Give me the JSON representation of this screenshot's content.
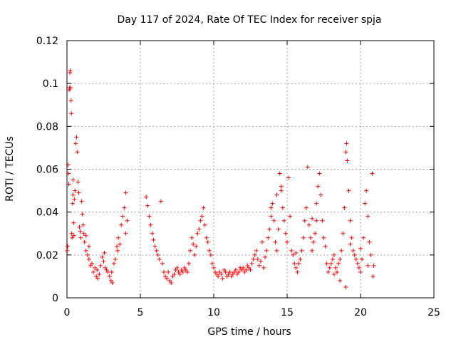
{
  "chart_data": {
    "type": "scatter",
    "title": "Day 117 of 2024, Rate Of TEC Index for receiver spja",
    "xlabel": "GPS time / hours",
    "ylabel": "ROTI / TECUs",
    "xlim": [
      0,
      25
    ],
    "ylim": [
      0,
      0.12
    ],
    "xticks": [
      0,
      5,
      10,
      15,
      20,
      25
    ],
    "xtick_labels": [
      "0",
      "5",
      "10",
      "15",
      "20",
      "25"
    ],
    "yticks": [
      0,
      0.02,
      0.04,
      0.06,
      0.08,
      0.1,
      0.12
    ],
    "ytick_labels": [
      "0",
      "0.02",
      "0.04",
      "0.06",
      "0.08",
      "0.1",
      "0.12"
    ],
    "grid": true,
    "marker": "+",
    "color": "#ff0000",
    "series": [
      {
        "name": "ROTI",
        "points": [
          [
            0.02,
            0.022
          ],
          [
            0.05,
            0.024
          ],
          [
            0.08,
            0.062
          ],
          [
            0.1,
            0.058
          ],
          [
            0.12,
            0.053
          ],
          [
            0.15,
            0.097
          ],
          [
            0.18,
            0.098
          ],
          [
            0.2,
            0.105
          ],
          [
            0.22,
            0.106
          ],
          [
            0.25,
            0.098
          ],
          [
            0.28,
            0.092
          ],
          [
            0.3,
            0.086
          ],
          [
            0.32,
            0.03
          ],
          [
            0.35,
            0.028
          ],
          [
            0.38,
            0.044
          ],
          [
            0.4,
            0.048
          ],
          [
            0.42,
            0.055
          ],
          [
            0.45,
            0.035
          ],
          [
            0.48,
            0.029
          ],
          [
            0.5,
            0.046
          ],
          [
            0.55,
            0.05
          ],
          [
            0.6,
            0.072
          ],
          [
            0.65,
            0.075
          ],
          [
            0.7,
            0.068
          ],
          [
            0.75,
            0.054
          ],
          [
            0.8,
            0.049
          ],
          [
            0.85,
            0.033
          ],
          [
            0.9,
            0.031
          ],
          [
            0.95,
            0.028
          ],
          [
            1.0,
            0.045
          ],
          [
            1.05,
            0.039
          ],
          [
            1.1,
            0.034
          ],
          [
            1.15,
            0.03
          ],
          [
            1.2,
            0.026
          ],
          [
            1.3,
            0.022
          ],
          [
            1.4,
            0.02
          ],
          [
            1.5,
            0.018
          ],
          [
            1.6,
            0.015
          ],
          [
            1.7,
            0.016
          ],
          [
            1.8,
            0.012
          ],
          [
            1.9,
            0.014
          ],
          [
            2.0,
            0.01
          ],
          [
            2.1,
            0.009
          ],
          [
            2.2,
            0.011
          ],
          [
            2.3,
            0.015
          ],
          [
            2.4,
            0.019
          ],
          [
            2.5,
            0.017
          ],
          [
            2.6,
            0.014
          ],
          [
            2.7,
            0.013
          ],
          [
            2.8,
            0.012
          ],
          [
            2.9,
            0.01
          ],
          [
            3.0,
            0.008
          ],
          [
            3.1,
            0.007
          ],
          [
            3.2,
            0.016
          ],
          [
            3.3,
            0.018
          ],
          [
            3.4,
            0.024
          ],
          [
            3.5,
            0.028
          ],
          [
            3.6,
            0.025
          ],
          [
            3.7,
            0.034
          ],
          [
            3.8,
            0.038
          ],
          [
            3.9,
            0.042
          ],
          [
            4.0,
            0.049
          ],
          [
            4.1,
            0.036
          ],
          [
            4.0,
            0.03
          ],
          [
            1.3,
            0.029
          ],
          [
            1.5,
            0.024
          ],
          [
            2.05,
            0.013
          ],
          [
            2.55,
            0.021
          ],
          [
            3.05,
            0.012
          ],
          [
            3.45,
            0.022
          ],
          [
            5.4,
            0.047
          ],
          [
            5.5,
            0.043
          ],
          [
            5.6,
            0.038
          ],
          [
            5.7,
            0.034
          ],
          [
            5.8,
            0.03
          ],
          [
            5.9,
            0.027
          ],
          [
            6.0,
            0.024
          ],
          [
            6.1,
            0.022
          ],
          [
            6.2,
            0.02
          ],
          [
            6.3,
            0.018
          ],
          [
            6.4,
            0.045
          ],
          [
            6.5,
            0.016
          ],
          [
            6.6,
            0.012
          ],
          [
            6.7,
            0.01
          ],
          [
            6.8,
            0.009
          ],
          [
            6.9,
            0.012
          ],
          [
            7.0,
            0.008
          ],
          [
            7.1,
            0.007
          ],
          [
            7.2,
            0.01
          ],
          [
            7.3,
            0.011
          ],
          [
            7.4,
            0.013
          ],
          [
            7.5,
            0.014
          ],
          [
            7.6,
            0.012
          ],
          [
            7.7,
            0.011
          ],
          [
            7.8,
            0.013
          ],
          [
            7.9,
            0.012
          ],
          [
            8.0,
            0.014
          ],
          [
            8.1,
            0.013
          ],
          [
            8.2,
            0.012
          ],
          [
            8.3,
            0.016
          ],
          [
            8.4,
            0.022
          ],
          [
            8.5,
            0.028
          ],
          [
            8.6,
            0.025
          ],
          [
            8.7,
            0.02
          ],
          [
            8.8,
            0.024
          ],
          [
            8.9,
            0.03
          ],
          [
            9.0,
            0.032
          ],
          [
            9.1,
            0.036
          ],
          [
            9.2,
            0.038
          ],
          [
            9.3,
            0.042
          ],
          [
            9.4,
            0.034
          ],
          [
            9.5,
            0.028
          ],
          [
            9.6,
            0.026
          ],
          [
            9.7,
            0.022
          ],
          [
            9.8,
            0.02
          ],
          [
            9.9,
            0.016
          ],
          [
            10.0,
            0.014
          ],
          [
            10.1,
            0.012
          ],
          [
            10.2,
            0.011
          ],
          [
            10.3,
            0.01
          ],
          [
            10.4,
            0.012
          ],
          [
            10.5,
            0.011
          ],
          [
            10.6,
            0.009
          ],
          [
            10.7,
            0.013
          ],
          [
            10.8,
            0.012
          ],
          [
            10.9,
            0.01
          ],
          [
            11.0,
            0.011
          ],
          [
            11.1,
            0.012
          ],
          [
            11.2,
            0.01
          ],
          [
            11.3,
            0.011
          ],
          [
            11.4,
            0.012
          ],
          [
            11.5,
            0.013
          ],
          [
            11.6,
            0.011
          ],
          [
            11.7,
            0.012
          ],
          [
            11.8,
            0.014
          ],
          [
            11.9,
            0.013
          ],
          [
            12.0,
            0.014
          ],
          [
            12.1,
            0.012
          ],
          [
            12.2,
            0.013
          ],
          [
            12.3,
            0.015
          ],
          [
            12.4,
            0.014
          ],
          [
            12.5,
            0.013
          ],
          [
            12.6,
            0.016
          ],
          [
            12.7,
            0.018
          ],
          [
            12.8,
            0.02
          ],
          [
            12.9,
            0.022
          ],
          [
            13.0,
            0.018
          ],
          [
            13.1,
            0.015
          ],
          [
            13.2,
            0.017
          ],
          [
            13.3,
            0.026
          ],
          [
            13.4,
            0.014
          ],
          [
            13.5,
            0.019
          ],
          [
            13.6,
            0.022
          ],
          [
            13.7,
            0.028
          ],
          [
            13.8,
            0.032
          ],
          [
            13.9,
            0.038
          ],
          [
            14.0,
            0.044
          ],
          [
            14.1,
            0.036
          ],
          [
            14.2,
            0.026
          ],
          [
            14.3,
            0.022
          ],
          [
            14.4,
            0.032
          ],
          [
            14.5,
            0.058
          ],
          [
            14.6,
            0.052
          ],
          [
            14.7,
            0.042
          ],
          [
            14.8,
            0.036
          ],
          [
            14.9,
            0.03
          ],
          [
            15.0,
            0.026
          ],
          [
            15.1,
            0.056
          ],
          [
            15.2,
            0.038
          ],
          [
            15.3,
            0.022
          ],
          [
            15.4,
            0.02
          ],
          [
            15.5,
            0.016
          ],
          [
            15.6,
            0.014
          ],
          [
            15.7,
            0.012
          ],
          [
            15.8,
            0.016
          ],
          [
            15.9,
            0.018
          ],
          [
            16.0,
            0.022
          ],
          [
            16.1,
            0.028
          ],
          [
            16.2,
            0.036
          ],
          [
            16.3,
            0.042
          ],
          [
            16.4,
            0.061
          ],
          [
            16.5,
            0.034
          ],
          [
            16.6,
            0.028
          ],
          [
            16.7,
            0.022
          ],
          [
            16.8,
            0.026
          ],
          [
            16.9,
            0.03
          ],
          [
            17.0,
            0.036
          ],
          [
            17.1,
            0.052
          ],
          [
            17.2,
            0.058
          ],
          [
            17.3,
            0.048
          ],
          [
            17.4,
            0.036
          ],
          [
            17.5,
            0.028
          ],
          [
            17.6,
            0.024
          ],
          [
            17.7,
            0.016
          ],
          [
            17.8,
            0.012
          ],
          [
            17.9,
            0.014
          ],
          [
            18.0,
            0.016
          ],
          [
            18.1,
            0.018
          ],
          [
            18.2,
            0.02
          ],
          [
            18.3,
            0.014
          ],
          [
            18.4,
            0.012
          ],
          [
            18.5,
            0.016
          ],
          [
            18.6,
            0.018
          ],
          [
            18.7,
            0.022
          ],
          [
            18.8,
            0.03
          ],
          [
            18.9,
            0.042
          ],
          [
            19.0,
            0.068
          ],
          [
            19.05,
            0.072
          ],
          [
            19.1,
            0.064
          ],
          [
            19.2,
            0.05
          ],
          [
            19.3,
            0.036
          ],
          [
            19.4,
            0.028
          ],
          [
            19.5,
            0.022
          ],
          [
            19.6,
            0.02
          ],
          [
            19.7,
            0.018
          ],
          [
            19.8,
            0.016
          ],
          [
            19.9,
            0.014
          ],
          [
            20.0,
            0.012
          ],
          [
            20.1,
            0.018
          ],
          [
            20.2,
            0.028
          ],
          [
            20.3,
            0.044
          ],
          [
            20.4,
            0.05
          ],
          [
            20.5,
            0.038
          ],
          [
            20.6,
            0.026
          ],
          [
            20.7,
            0.02
          ],
          [
            20.8,
            0.058
          ],
          [
            20.85,
            0.01
          ],
          [
            20.9,
            0.015
          ],
          [
            19.0,
            0.005
          ],
          [
            18.6,
            0.008
          ],
          [
            14.3,
            0.048
          ],
          [
            14.6,
            0.05
          ],
          [
            13.9,
            0.042
          ],
          [
            15.6,
            0.021
          ],
          [
            16.7,
            0.037
          ],
          [
            17.0,
            0.044
          ],
          [
            18.2,
            0.011
          ],
          [
            19.3,
            0.025
          ],
          [
            20.0,
            0.023
          ],
          [
            20.5,
            0.015
          ]
        ]
      }
    ]
  }
}
